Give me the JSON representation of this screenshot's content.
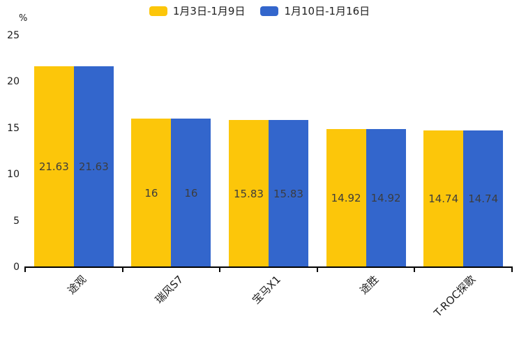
{
  "chart_data": {
    "type": "bar",
    "title": "",
    "unit": "%",
    "categories": [
      "途观",
      "瑞风S7",
      "宝马X1",
      "途胜",
      "T-ROC探歌"
    ],
    "series": [
      {
        "name": "1月3日-1月9日",
        "color": "#FCC60A",
        "values": [
          21.63,
          16,
          15.83,
          14.92,
          14.74
        ],
        "labels": [
          "21.63",
          "16",
          "15.83",
          "14.92",
          "14.74"
        ]
      },
      {
        "name": "1月10日-1月16日",
        "color": "#3366CC",
        "values": [
          21.63,
          16,
          15.83,
          14.92,
          14.74
        ],
        "labels": [
          "21.63",
          "16",
          "15.83",
          "14.92",
          "14.74"
        ]
      }
    ],
    "ylim": [
      0,
      25
    ],
    "yticks": [
      0,
      5,
      10,
      15,
      20,
      25
    ],
    "grid": false,
    "legend_position": "top",
    "data_labels": "centered-inside-bars",
    "x_label_rotation_deg": 45
  },
  "colors": {
    "background": "#ffffff",
    "axis": "#000000",
    "tick_text": "#1a1a1a",
    "bar_value_text": "#3d3d3d"
  }
}
